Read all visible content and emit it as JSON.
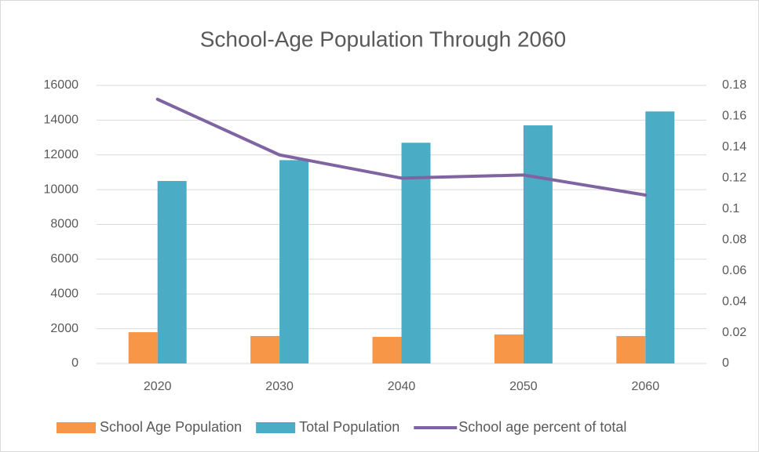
{
  "chart_data": {
    "type": "bar",
    "title": "School-Age Population Through 2060",
    "categories": [
      "2020",
      "2030",
      "2040",
      "2050",
      "2060"
    ],
    "series": [
      {
        "name": "School Age Population",
        "type": "bar",
        "color": "#f79646",
        "values": [
          1800,
          1580,
          1530,
          1670,
          1580
        ]
      },
      {
        "name": "Total Population",
        "type": "bar",
        "color": "#4bacc6",
        "values": [
          10500,
          11700,
          12700,
          13700,
          14500
        ]
      },
      {
        "name": "School age percent of total",
        "type": "line",
        "axis": "y2",
        "color": "#8064a2",
        "values": [
          0.171,
          0.135,
          0.12,
          0.122,
          0.109
        ]
      }
    ],
    "ylim": [
      0,
      16000
    ],
    "yticks": [
      0,
      2000,
      4000,
      6000,
      8000,
      10000,
      12000,
      14000,
      16000
    ],
    "y2lim": [
      0,
      0.18
    ],
    "y2ticks": [
      0,
      0.02,
      0.04,
      0.06,
      0.08,
      0.1,
      0.12,
      0.14,
      0.16,
      0.18
    ],
    "grid": true,
    "legend": "bottom"
  }
}
